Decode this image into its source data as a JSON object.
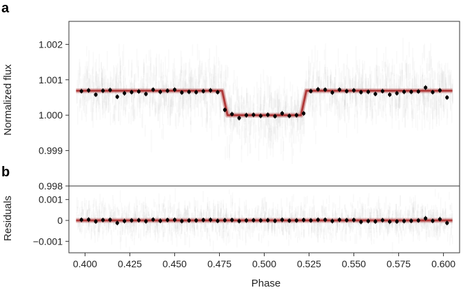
{
  "chart_data": [
    {
      "panel": "a",
      "type": "scatter",
      "ylabel": "Normalized flux",
      "xlim": [
        0.391,
        0.609
      ],
      "ylim": [
        0.998,
        1.00265
      ],
      "yticks": [
        0.998,
        0.999,
        1.0,
        1.001,
        1.002
      ],
      "ytick_labels": [
        "0.998",
        "0.999",
        "1.000",
        "1.001",
        "1.002"
      ],
      "model_color": "#b03a3a",
      "point_color": "#000000",
      "raw_color": "#9a9a9a",
      "model": {
        "x": [
          0.395,
          0.4765,
          0.4795,
          0.5205,
          0.5235,
          0.605
        ],
        "y": [
          1.00069,
          1.00069,
          1.0,
          1.0,
          1.00069,
          1.00069
        ]
      },
      "binned": {
        "x": [
          0.398,
          0.402,
          0.406,
          0.41,
          0.414,
          0.418,
          0.422,
          0.426,
          0.43,
          0.434,
          0.438,
          0.442,
          0.446,
          0.45,
          0.454,
          0.458,
          0.462,
          0.466,
          0.47,
          0.474,
          0.478,
          0.482,
          0.486,
          0.49,
          0.494,
          0.498,
          0.502,
          0.506,
          0.51,
          0.514,
          0.518,
          0.522,
          0.526,
          0.53,
          0.534,
          0.538,
          0.542,
          0.546,
          0.55,
          0.554,
          0.558,
          0.562,
          0.566,
          0.57,
          0.574,
          0.578,
          0.582,
          0.586,
          0.59,
          0.594,
          0.598,
          0.602
        ],
        "y": [
          1.00068,
          1.0007,
          1.00058,
          1.00069,
          1.00071,
          1.00052,
          1.00062,
          1.00065,
          1.00067,
          1.0006,
          1.00072,
          1.00066,
          1.00069,
          1.00072,
          1.00064,
          1.00066,
          1.00065,
          1.00068,
          1.0007,
          1.00065,
          1.00015,
          1.00003,
          0.99992,
          1.0,
          1.00001,
          0.99998,
          1.00001,
          0.99997,
          1.00005,
          0.99998,
          1.0,
          1.00005,
          1.00068,
          1.00073,
          1.00072,
          1.00064,
          1.00072,
          1.00068,
          1.0007,
          1.00065,
          1.00066,
          1.0006,
          1.00068,
          1.00058,
          1.00062,
          1.00066,
          1.00066,
          1.00067,
          1.00078,
          1.00065,
          1.0007,
          1.0005
        ]
      }
    },
    {
      "panel": "b",
      "type": "scatter",
      "xlabel": "Phase",
      "ylabel": "Residuals",
      "xlim": [
        0.391,
        0.609
      ],
      "ylim": [
        -0.00155,
        0.00165
      ],
      "yticks": [
        -0.001,
        0,
        0.001
      ],
      "ytick_labels": [
        "−0.001",
        "0",
        "0.001"
      ],
      "xticks": [
        0.4,
        0.425,
        0.45,
        0.475,
        0.5,
        0.525,
        0.55,
        0.575,
        0.6
      ],
      "xtick_labels": [
        "0.400",
        "0.425",
        "0.450",
        "0.475",
        "0.500",
        "0.525",
        "0.550",
        "0.575",
        "0.600"
      ],
      "model_color": "#b03a3a",
      "point_color": "#000000",
      "raw_color": "#9a9a9a",
      "model": {
        "x": [
          0.395,
          0.605
        ],
        "y": [
          0,
          0
        ]
      },
      "binned": {
        "x": [
          0.398,
          0.402,
          0.406,
          0.41,
          0.414,
          0.418,
          0.422,
          0.426,
          0.43,
          0.434,
          0.438,
          0.442,
          0.446,
          0.45,
          0.454,
          0.458,
          0.462,
          0.466,
          0.47,
          0.474,
          0.478,
          0.482,
          0.486,
          0.49,
          0.494,
          0.498,
          0.502,
          0.506,
          0.51,
          0.514,
          0.518,
          0.522,
          0.526,
          0.53,
          0.534,
          0.538,
          0.542,
          0.546,
          0.55,
          0.554,
          0.558,
          0.562,
          0.566,
          0.57,
          0.574,
          0.578,
          0.582,
          0.586,
          0.59,
          0.594,
          0.598,
          0.602
        ],
        "y": [
          3e-05,
          4e-05,
          -5e-05,
          2e-05,
          3e-05,
          -0.00012,
          -3e-05,
          0.0,
          1e-05,
          -4e-05,
          4e-05,
          -2e-05,
          2e-05,
          3e-05,
          -3e-05,
          0.0,
          0.0,
          2e-05,
          3e-05,
          -2e-05,
          1e-05,
          2e-05,
          -3e-05,
          0.0,
          1e-05,
          0.0,
          1e-05,
          -2e-05,
          3e-05,
          -1e-05,
          0.0,
          2e-05,
          0.0,
          3e-05,
          3e-05,
          -3e-05,
          3e-05,
          1e-05,
          2e-05,
          -7e-05,
          -3e-05,
          -5e-05,
          1e-05,
          -6e-05,
          -5e-05,
          -3e-05,
          -2e-05,
          0.0,
          0.0001,
          -2e-05,
          6e-05,
          -0.00012
        ]
      }
    }
  ]
}
